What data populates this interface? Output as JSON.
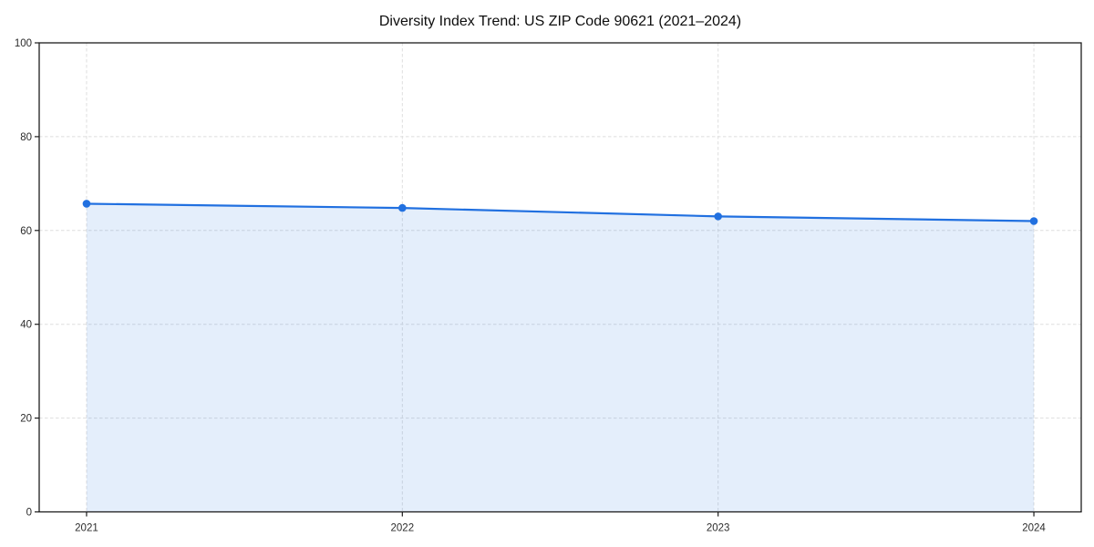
{
  "chart_data": {
    "type": "area",
    "title": "Diversity Index Trend: US ZIP Code 90621 (2021–2024)",
    "x": [
      2021,
      2022,
      2023,
      2024
    ],
    "categories": [
      "2021",
      "2022",
      "2023",
      "2024"
    ],
    "series": [
      {
        "name": "Diversity Index",
        "values": [
          65.7,
          64.8,
          63.0,
          62.0
        ]
      }
    ],
    "xlabel": "",
    "ylabel": "",
    "xlim": [
      2020.85,
      2024.15
    ],
    "ylim": [
      0,
      100
    ],
    "yticks": [
      0,
      20,
      40,
      60,
      80,
      100
    ],
    "grid": true,
    "grid_style": "dashed",
    "legend": false,
    "colors": {
      "line": "#2170e0",
      "marker": "#2170e0",
      "fill": "#2170e0",
      "fill_opacity": 0.12,
      "grid": "#dedede",
      "spine": "#1c1c1c",
      "tick_label": "#2b2b2b",
      "title": "#0d0d0d",
      "background": "#ffffff"
    }
  }
}
